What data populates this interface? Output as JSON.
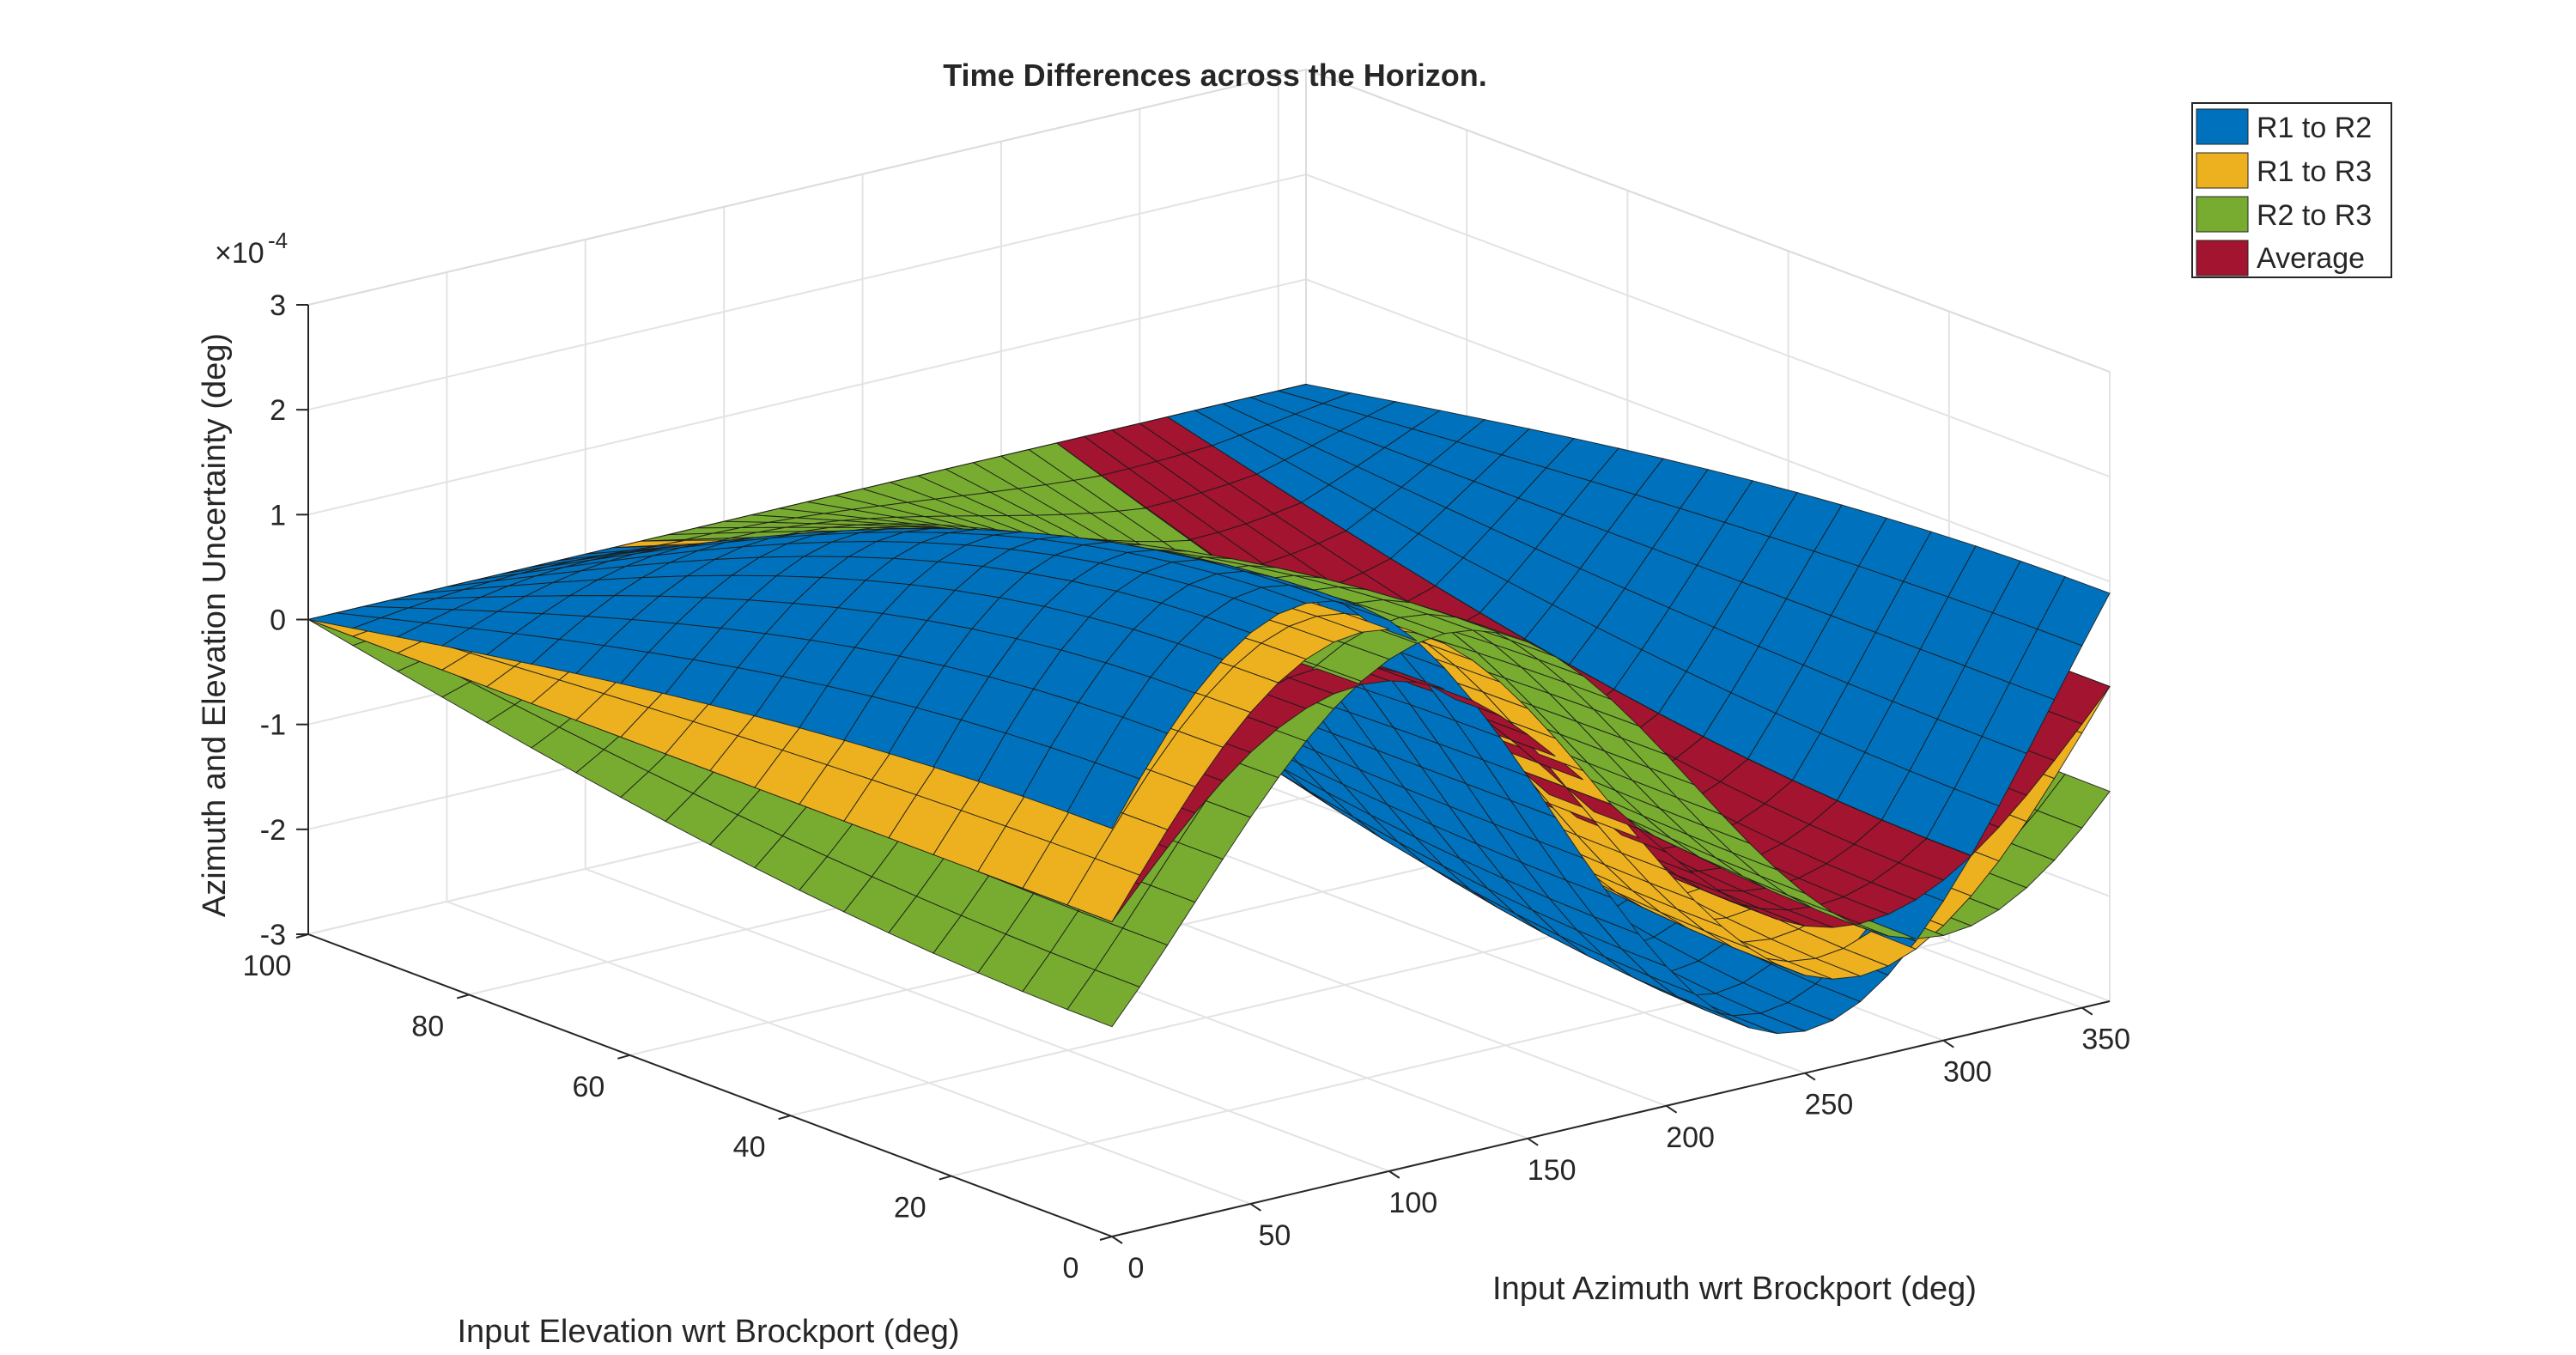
{
  "chart_data": {
    "type": "surface3d",
    "title": "Time Differences across the Horizon.",
    "xlabel": "Input Azimuth wrt Brockport (deg)",
    "ylabel": "Input Elevation wrt Brockport (deg)",
    "zlabel": "Azimuth and Elevation Uncertainty (deg)",
    "z_exponent_base": "×10",
    "z_exponent_power": "-4",
    "xlim": [
      0,
      360
    ],
    "ylim": [
      0,
      100
    ],
    "zlim": [
      -3,
      3
    ],
    "x_ticks": [
      "0",
      "50",
      "100",
      "150",
      "200",
      "250",
      "300",
      "350"
    ],
    "y_ticks": [
      "0",
      "20",
      "40",
      "60",
      "80",
      "100"
    ],
    "z_ticks": [
      "-3",
      "-2",
      "-1",
      "0",
      "1",
      "2",
      "3"
    ],
    "grid": true,
    "legend_position": "top-right",
    "series": [
      {
        "name": "R1 to R2",
        "color": "#0072BD",
        "amplitude": 2.6,
        "phase_deg": 20
      },
      {
        "name": "R1 to R3",
        "color": "#EDB120",
        "amplitude": 2.2,
        "phase_deg": 0
      },
      {
        "name": "R2 to R3",
        "color": "#77AC30",
        "amplitude": 2.0,
        "phase_deg": -30
      },
      {
        "name": "Average",
        "color": "#A2142F",
        "amplitude": 1.7,
        "phase_deg": 0
      }
    ],
    "surface_model": "z = amplitude * cos(elevation) * sin(azimuth + phase)"
  }
}
